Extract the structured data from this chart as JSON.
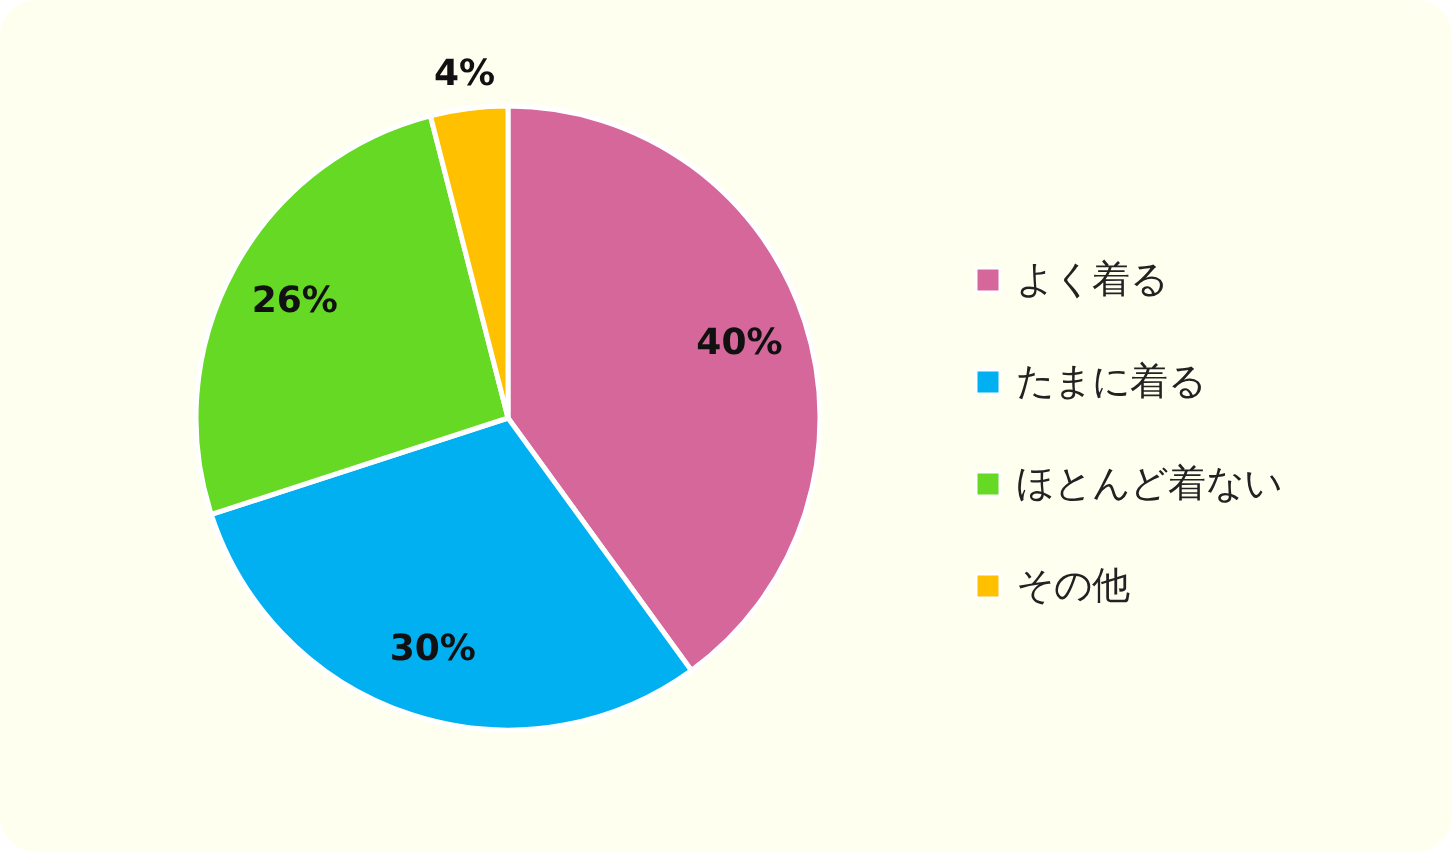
{
  "chart_data": {
    "type": "pie",
    "categories": [
      "よく着る",
      "たまに着る",
      "ほとんど着ない",
      "その他"
    ],
    "values": [
      40,
      30,
      26,
      4
    ],
    "colors": [
      "#d5679a",
      "#00b0f0",
      "#66d924",
      "#ffc000"
    ],
    "value_labels": [
      "40%",
      "30%",
      "26%",
      "4%"
    ],
    "legend": "right"
  }
}
